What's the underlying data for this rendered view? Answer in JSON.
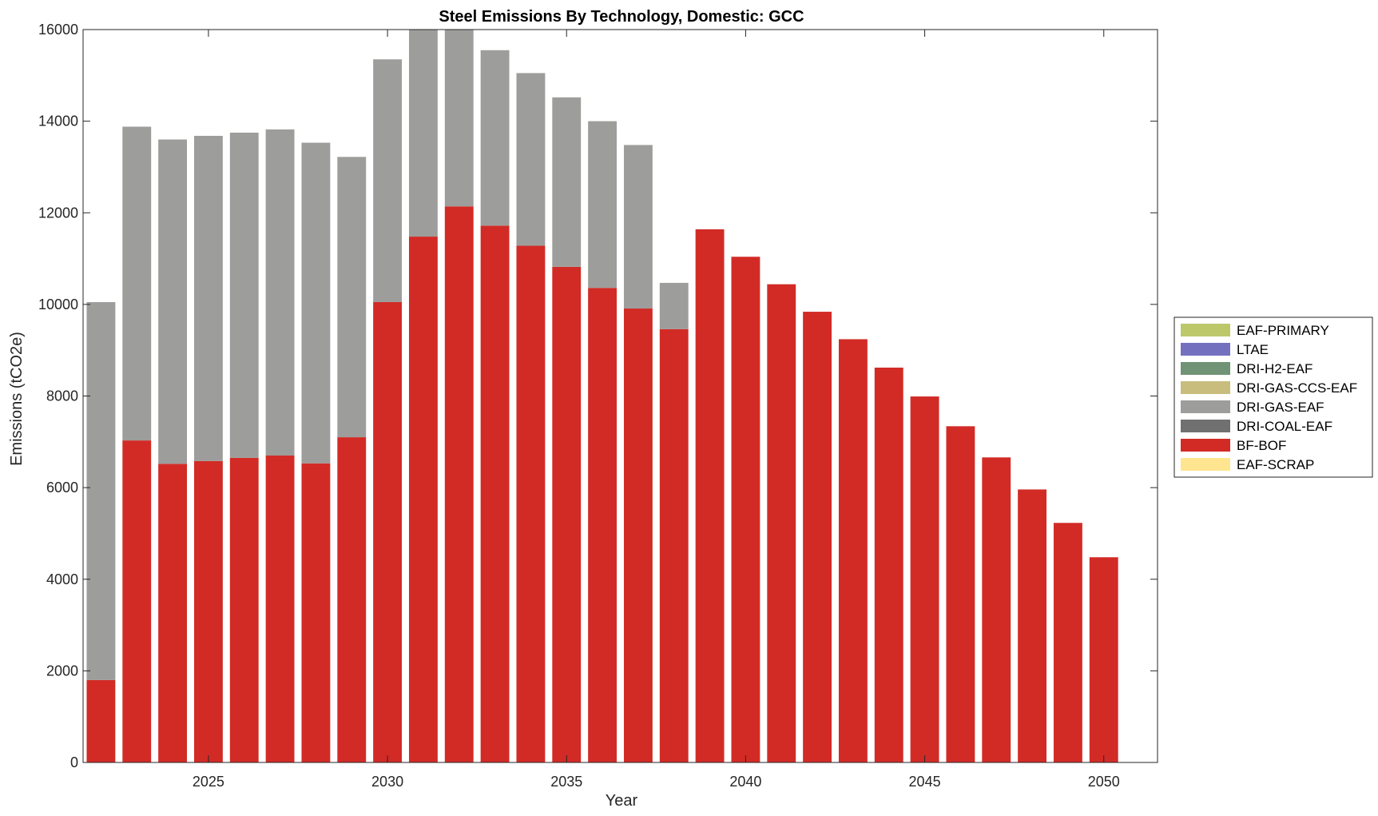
{
  "chart_data": {
    "type": "bar",
    "stacked": true,
    "title": "Steel Emissions By Technology, Domestic: GCC",
    "xlabel": "Year",
    "ylabel": "Emissions (tCO2e)",
    "xlim": [
      2021.5,
      2051.5
    ],
    "ylim": [
      0,
      16000
    ],
    "xticks": [
      2025,
      2030,
      2035,
      2040,
      2045,
      2050
    ],
    "yticks": [
      0,
      2000,
      4000,
      6000,
      8000,
      10000,
      12000,
      14000,
      16000
    ],
    "grid": false,
    "legend_location": "outside-right",
    "x": [
      2022,
      2023,
      2024,
      2025,
      2026,
      2027,
      2028,
      2029,
      2030,
      2031,
      2032,
      2033,
      2034,
      2035,
      2036,
      2037,
      2038,
      2039,
      2040,
      2041,
      2042,
      2043,
      2044,
      2045,
      2046,
      2047,
      2048,
      2049,
      2050
    ],
    "series": [
      {
        "name": "EAF-SCRAP",
        "color": "#FFE58F",
        "values": [
          0,
          0,
          0,
          0,
          0,
          0,
          0,
          0,
          0,
          0,
          0,
          0,
          0,
          0,
          0,
          0,
          0,
          0,
          0,
          0,
          0,
          0,
          0,
          0,
          0,
          0,
          0,
          0,
          0
        ]
      },
      {
        "name": "BF-BOF",
        "color": "#D22B26",
        "values": [
          1800,
          7030,
          6520,
          6580,
          6650,
          6700,
          6530,
          7100,
          10050,
          11480,
          12140,
          11720,
          11280,
          10820,
          10360,
          9910,
          9460,
          11640,
          11040,
          10440,
          9840,
          9240,
          8620,
          7990,
          7340,
          6660,
          5960,
          5230,
          4480
        ]
      },
      {
        "name": "DRI-COAL-EAF",
        "color": "#707070",
        "values": [
          0,
          0,
          0,
          0,
          0,
          0,
          0,
          0,
          0,
          0,
          0,
          0,
          0,
          0,
          0,
          0,
          0,
          0,
          0,
          0,
          0,
          0,
          0,
          0,
          0,
          0,
          0,
          0,
          0
        ]
      },
      {
        "name": "DRI-GAS-EAF",
        "color": "#9D9D9B",
        "values": [
          8250,
          6850,
          7080,
          7100,
          7100,
          7120,
          7000,
          6120,
          5300,
          5000,
          4500,
          3830,
          3770,
          3700,
          3640,
          3570,
          1010,
          0,
          0,
          0,
          0,
          0,
          0,
          0,
          0,
          0,
          0,
          0,
          0
        ]
      },
      {
        "name": "DRI-GAS-CCS-EAF",
        "color": "#C8BD7D",
        "values": [
          0,
          0,
          0,
          0,
          0,
          0,
          0,
          0,
          0,
          0,
          0,
          0,
          0,
          0,
          0,
          0,
          0,
          0,
          0,
          0,
          0,
          0,
          0,
          0,
          0,
          0,
          0,
          0,
          0
        ]
      },
      {
        "name": "DRI-H2-EAF",
        "color": "#6F9374",
        "values": [
          0,
          0,
          0,
          0,
          0,
          0,
          0,
          0,
          0,
          0,
          0,
          0,
          0,
          0,
          0,
          0,
          0,
          0,
          0,
          0,
          0,
          0,
          0,
          0,
          0,
          0,
          0,
          0,
          0
        ]
      },
      {
        "name": "LTAE",
        "color": "#7470C0",
        "values": [
          0,
          0,
          0,
          0,
          0,
          0,
          0,
          0,
          0,
          0,
          0,
          0,
          0,
          0,
          0,
          0,
          0,
          0,
          0,
          0,
          0,
          0,
          0,
          0,
          0,
          0,
          0,
          0,
          0
        ]
      },
      {
        "name": "EAF-PRIMARY",
        "color": "#BDC86B",
        "values": [
          0,
          0,
          0,
          0,
          0,
          0,
          0,
          0,
          0,
          0,
          0,
          0,
          0,
          0,
          0,
          0,
          0,
          0,
          0,
          0,
          0,
          0,
          0,
          0,
          0,
          0,
          0,
          0,
          0
        ]
      }
    ],
    "legend_order": [
      "EAF-PRIMARY",
      "LTAE",
      "DRI-H2-EAF",
      "DRI-GAS-CCS-EAF",
      "DRI-GAS-EAF",
      "DRI-COAL-EAF",
      "BF-BOF",
      "EAF-SCRAP"
    ]
  }
}
